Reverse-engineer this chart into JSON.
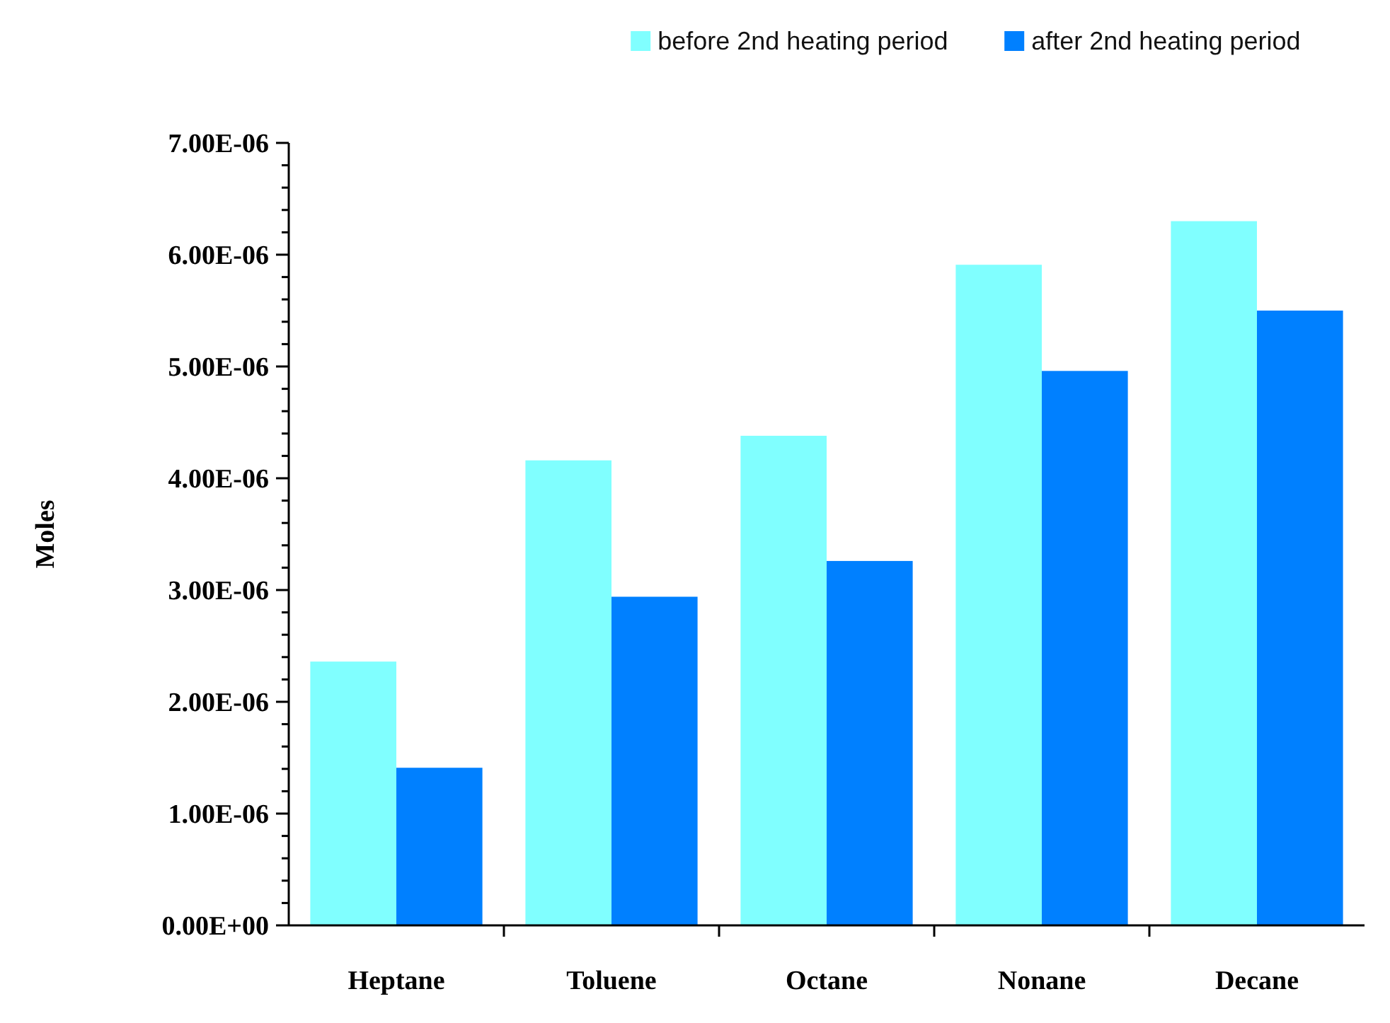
{
  "chart_data": {
    "type": "bar",
    "ylabel": "Moles",
    "categories": [
      "Heptane",
      "Toluene",
      "Octane",
      "Nonane",
      "Decane"
    ],
    "series": [
      {
        "name": "before 2nd heating period",
        "color": "#80ffff",
        "values": [
          2.36e-06,
          4.16e-06,
          4.38e-06,
          5.91e-06,
          6.3e-06
        ]
      },
      {
        "name": "after 2nd heating period",
        "color": "#0080ff",
        "values": [
          1.41e-06,
          2.94e-06,
          3.26e-06,
          4.96e-06,
          5.5e-06
        ]
      }
    ],
    "ylim": [
      0,
      7e-06
    ],
    "yticks": [
      {
        "value": 0,
        "label": "0.00E+00"
      },
      {
        "value": 2e-07,
        "label": null
      },
      {
        "value": 4e-07,
        "label": null
      },
      {
        "value": 6e-07,
        "label": null
      },
      {
        "value": 8e-07,
        "label": null
      },
      {
        "value": 1e-06,
        "label": "1.00E-06"
      },
      {
        "value": 1.2e-06,
        "label": null
      },
      {
        "value": 1.4e-06,
        "label": null
      },
      {
        "value": 1.6e-06,
        "label": null
      },
      {
        "value": 1.8e-06,
        "label": null
      },
      {
        "value": 2e-06,
        "label": "2.00E-06"
      },
      {
        "value": 2.2e-06,
        "label": null
      },
      {
        "value": 2.4e-06,
        "label": null
      },
      {
        "value": 2.6e-06,
        "label": null
      },
      {
        "value": 2.8e-06,
        "label": null
      },
      {
        "value": 3e-06,
        "label": "3.00E-06"
      },
      {
        "value": 3.2e-06,
        "label": null
      },
      {
        "value": 3.4e-06,
        "label": null
      },
      {
        "value": 3.6e-06,
        "label": null
      },
      {
        "value": 3.8e-06,
        "label": null
      },
      {
        "value": 4e-06,
        "label": "4.00E-06"
      },
      {
        "value": 4.2e-06,
        "label": null
      },
      {
        "value": 4.4e-06,
        "label": null
      },
      {
        "value": 4.6e-06,
        "label": null
      },
      {
        "value": 4.8e-06,
        "label": null
      },
      {
        "value": 5e-06,
        "label": "5.00E-06"
      },
      {
        "value": 5.2e-06,
        "label": null
      },
      {
        "value": 5.4e-06,
        "label": null
      },
      {
        "value": 5.6e-06,
        "label": null
      },
      {
        "value": 5.8e-06,
        "label": null
      },
      {
        "value": 6e-06,
        "label": "6.00E-06"
      },
      {
        "value": 6.2e-06,
        "label": null
      },
      {
        "value": 6.4e-06,
        "label": null
      },
      {
        "value": 6.6e-06,
        "label": null
      },
      {
        "value": 6.8e-06,
        "label": null
      },
      {
        "value": 7e-06,
        "label": "7.00E-06"
      }
    ],
    "grid": false,
    "legend": "top right"
  }
}
